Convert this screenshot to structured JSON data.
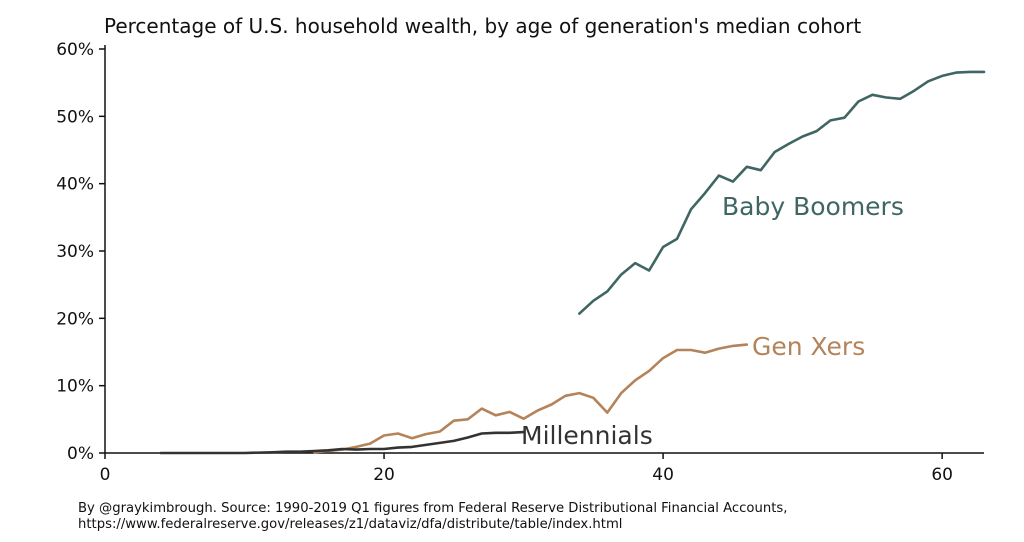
{
  "chart_data": {
    "type": "line",
    "title": "Percentage of U.S. household wealth, by age of generation's median cohort",
    "xlabel": "",
    "ylabel": "",
    "xlim": [
      0,
      63
    ],
    "ylim": [
      0,
      60
    ],
    "x_ticks": [
      {
        "value": 0,
        "label": "0"
      },
      {
        "value": 20,
        "label": "20"
      },
      {
        "value": 40,
        "label": "40"
      },
      {
        "value": 60,
        "label": "60"
      }
    ],
    "y_ticks": [
      {
        "value": 0,
        "label": "0%"
      },
      {
        "value": 10,
        "label": "10%"
      },
      {
        "value": 20,
        "label": "20%"
      },
      {
        "value": 30,
        "label": "30%"
      },
      {
        "value": 40,
        "label": "40%"
      },
      {
        "value": 50,
        "label": "50%"
      },
      {
        "value": 60,
        "label": "60%"
      }
    ],
    "grid": false,
    "legend": "direct labels next to lines",
    "series": [
      {
        "name": "Baby Boomers",
        "color": "#3f6663",
        "x": [
          34,
          35,
          36,
          37,
          38,
          39,
          40,
          41,
          42,
          43,
          44,
          45,
          46,
          47,
          48,
          49,
          50,
          51,
          52,
          53,
          54,
          55,
          56,
          57,
          58,
          59,
          60,
          61,
          62,
          63
        ],
        "y": [
          20.7,
          22.6,
          24.0,
          26.5,
          28.2,
          27.1,
          30.6,
          31.8,
          36.2,
          38.6,
          41.2,
          40.3,
          42.5,
          42.0,
          44.7,
          45.9,
          47.0,
          47.8,
          49.4,
          49.8,
          52.2,
          53.2,
          52.8,
          52.6,
          53.8,
          55.2,
          56.0,
          56.5,
          56.6,
          56.6
        ]
      },
      {
        "name": "Gen Xers",
        "color": "#b5835a",
        "x": [
          15,
          16,
          17,
          18,
          19,
          20,
          21,
          22,
          23,
          24,
          25,
          26,
          27,
          28,
          29,
          30,
          31,
          32,
          33,
          34,
          35,
          36,
          37,
          38,
          39,
          40,
          41,
          42,
          43,
          44,
          45,
          46
        ],
        "y": [
          0.1,
          0.3,
          0.5,
          0.9,
          1.4,
          2.6,
          2.9,
          2.2,
          2.8,
          3.2,
          4.8,
          5.0,
          6.6,
          5.6,
          6.1,
          5.1,
          6.3,
          7.2,
          8.5,
          8.9,
          8.2,
          6.0,
          8.9,
          10.8,
          12.2,
          14.1,
          15.3,
          15.3,
          14.9,
          15.5,
          15.9,
          16.1
        ]
      },
      {
        "name": "Millennials",
        "color": "#333333",
        "x": [
          4,
          6,
          8,
          10,
          12,
          13,
          14,
          15,
          16,
          17,
          18,
          19,
          20,
          21,
          22,
          23,
          24,
          25,
          26,
          27,
          28,
          29,
          30
        ],
        "y": [
          0.0,
          0.0,
          0.0,
          0.0,
          0.1,
          0.2,
          0.2,
          0.3,
          0.4,
          0.6,
          0.5,
          0.6,
          0.6,
          0.8,
          0.9,
          1.2,
          1.5,
          1.8,
          2.3,
          2.9,
          3.0,
          3.0,
          3.1
        ]
      }
    ]
  },
  "source": {
    "line1": "By @graykimbrough. Source: 1990-2019 Q1 figures from Federal Reserve Distributional Financial Accounts,",
    "line2": "https://www.federalreserve.gov/releases/z1/dataviz/dfa/distribute/table/index.html"
  }
}
